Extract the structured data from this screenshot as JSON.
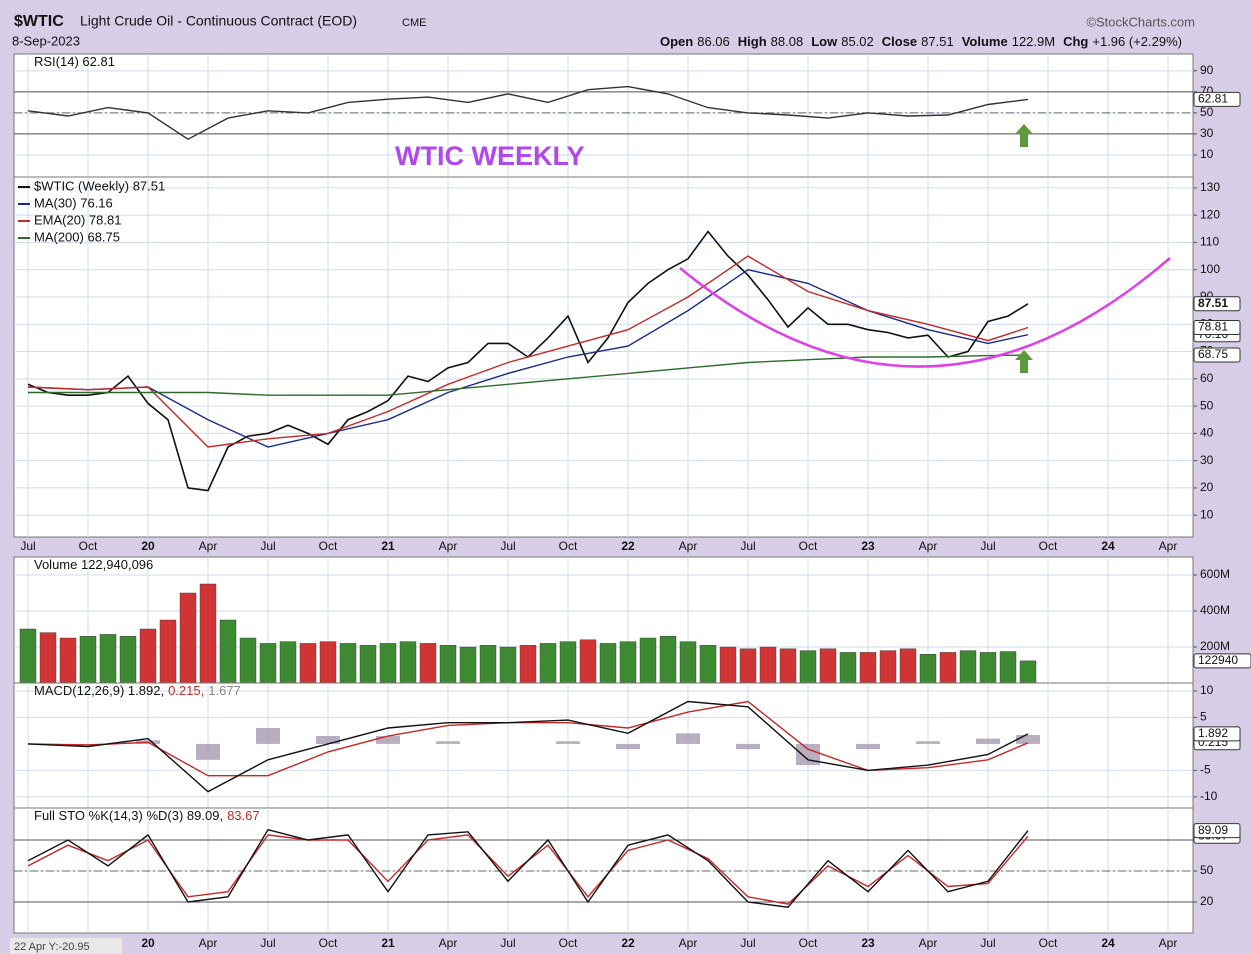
{
  "header": {
    "symbol": "$WTIC",
    "name": "Light Crude Oil - Continuous Contract (EOD)",
    "exchange": "CME",
    "date": "8-Sep-2023",
    "credit": "©StockCharts.com",
    "quote": [
      {
        "label": "Open",
        "value": "86.06"
      },
      {
        "label": "High",
        "value": "88.08"
      },
      {
        "label": "Low",
        "value": "85.02"
      },
      {
        "label": "Close",
        "value": "87.51"
      },
      {
        "label": "Volume",
        "value": "122.9M"
      },
      {
        "label": "Chg",
        "value": "+1.96 (+2.29%)"
      }
    ],
    "annotation": "WTIC WEEKLY",
    "cursor": "22 Apr Y:-20.95"
  },
  "time_axis": {
    "xlim": [
      -0.7,
      58.25
    ],
    "xticks": [
      {
        "value": 0,
        "label": "Jul"
      },
      {
        "value": 3,
        "label": "Oct"
      },
      {
        "value": 6,
        "label": "20"
      },
      {
        "value": 9,
        "label": "Apr"
      },
      {
        "value": 12,
        "label": "Jul"
      },
      {
        "value": 15,
        "label": "Oct"
      },
      {
        "value": 18,
        "label": "21"
      },
      {
        "value": 21,
        "label": "Apr"
      },
      {
        "value": 24,
        "label": "Jul"
      },
      {
        "value": 27,
        "label": "Oct"
      },
      {
        "value": 30,
        "label": "22"
      },
      {
        "value": 33,
        "label": "Apr"
      },
      {
        "value": 36,
        "label": "Jul"
      },
      {
        "value": 39,
        "label": "Oct"
      },
      {
        "value": 42,
        "label": "23"
      },
      {
        "value": 45,
        "label": "Apr"
      },
      {
        "value": 48,
        "label": "Jul"
      },
      {
        "value": 51,
        "label": "Oct"
      },
      {
        "value": 54,
        "label": "24"
      },
      {
        "value": 57,
        "label": "Apr"
      }
    ]
  },
  "chart_data": [
    {
      "type": "line",
      "title_parts": [
        "RSI(14) 62.81"
      ],
      "title_colors": [
        "#111"
      ],
      "ylim": [
        -11,
        106
      ],
      "yticks": [
        10,
        30,
        50,
        70,
        90
      ],
      "ref_lines": [
        30,
        70
      ],
      "mid_line": 50,
      "series": [
        {
          "name": "RSI(14)",
          "color": "#333",
          "tag": true,
          "x": [
            0,
            2,
            4,
            6,
            8,
            10,
            12,
            14,
            16,
            18,
            20,
            22,
            24,
            26,
            28,
            30,
            32,
            34,
            36,
            38,
            40,
            42,
            44,
            46,
            48,
            50
          ],
          "values": [
            52,
            47,
            55,
            50,
            25,
            45,
            52,
            50,
            60,
            63,
            65,
            60,
            68,
            60,
            72,
            75,
            68,
            55,
            50,
            48,
            45,
            50,
            47,
            48,
            58,
            62.81
          ]
        }
      ]
    },
    {
      "type": "line",
      "legend": true,
      "ylim": [
        2,
        134
      ],
      "yticks": [
        10,
        20,
        30,
        40,
        50,
        60,
        70,
        80,
        90,
        100,
        110,
        120,
        130
      ],
      "series": [
        {
          "name": "$WTIC (Weekly) 87.51",
          "color": "#111",
          "tag": true,
          "x": [
            0,
            1,
            2,
            3,
            4,
            5,
            6,
            7,
            8,
            9,
            10,
            11,
            12,
            13,
            14,
            15,
            16,
            17,
            18,
            19,
            20,
            21,
            22,
            23,
            24,
            25,
            26,
            27,
            28,
            29,
            30,
            31,
            32,
            33,
            34,
            35,
            36,
            37,
            38,
            39,
            40,
            41,
            42,
            43,
            44,
            45,
            46,
            47,
            48,
            49,
            50
          ],
          "values": [
            58,
            55,
            54,
            54,
            55,
            61,
            51,
            45,
            20,
            19,
            35,
            39,
            40,
            43,
            40,
            36,
            45,
            48,
            52,
            61,
            59,
            64,
            66,
            73,
            73,
            68,
            75,
            83,
            66,
            75,
            88,
            95,
            100,
            104,
            114,
            105,
            98,
            89,
            79,
            86,
            80,
            80,
            78,
            77,
            75,
            76,
            68,
            70,
            81,
            83,
            87.51
          ]
        },
        {
          "name": "MA(30) 76.16",
          "color": "#1a2a8c",
          "tag": true,
          "x": [
            0,
            3,
            6,
            9,
            12,
            15,
            18,
            21,
            24,
            27,
            30,
            33,
            36,
            39,
            42,
            45,
            48,
            50
          ],
          "values": [
            57,
            56,
            57,
            45,
            35,
            40,
            45,
            55,
            62,
            68,
            72,
            85,
            100,
            95,
            85,
            78,
            73,
            76.16
          ]
        },
        {
          "name": "EMA(20) 78.81",
          "color": "#c62828",
          "tag": true,
          "x": [
            0,
            3,
            6,
            9,
            12,
            15,
            18,
            21,
            24,
            27,
            30,
            33,
            36,
            39,
            42,
            45,
            48,
            50
          ],
          "values": [
            57,
            56,
            57,
            35,
            38,
            40,
            48,
            58,
            66,
            72,
            78,
            90,
            105,
            92,
            85,
            80,
            74,
            78.81
          ]
        },
        {
          "name": "MA(200) 68.75",
          "color": "#2e6b2a",
          "tag": true,
          "x": [
            0,
            3,
            6,
            9,
            12,
            15,
            18,
            21,
            24,
            27,
            30,
            33,
            36,
            39,
            42,
            45,
            48,
            50
          ],
          "values": [
            55,
            55,
            55,
            55,
            54,
            54,
            54,
            56,
            58,
            60,
            62,
            64,
            66,
            67,
            68,
            68,
            68.5,
            68.75
          ]
        }
      ]
    },
    {
      "type": "bar",
      "title_parts": [
        "Volume 122,940,096"
      ],
      "title_colors": [
        "#111"
      ],
      "last_label": "122940",
      "up_color": "#3d8a32",
      "down_color": "#d03434",
      "ylim": [
        0,
        700
      ],
      "yticks": [
        {
          "value": 200,
          "label": "200M"
        },
        {
          "value": 400,
          "label": "400M"
        },
        {
          "value": 600,
          "label": "600M"
        }
      ],
      "series": [
        {
          "name": "Volume",
          "x": [
            0,
            1,
            2,
            3,
            4,
            5,
            6,
            7,
            8,
            9,
            10,
            11,
            12,
            13,
            14,
            15,
            16,
            17,
            18,
            19,
            20,
            21,
            22,
            23,
            24,
            25,
            26,
            27,
            28,
            29,
            30,
            31,
            32,
            33,
            34,
            35,
            36,
            37,
            38,
            39,
            40,
            41,
            42,
            43,
            44,
            45,
            46,
            47,
            48,
            49,
            50
          ],
          "values": [
            300,
            280,
            250,
            260,
            270,
            260,
            300,
            350,
            500,
            550,
            350,
            250,
            220,
            230,
            220,
            230,
            220,
            210,
            220,
            230,
            220,
            210,
            200,
            210,
            200,
            210,
            220,
            230,
            240,
            220,
            230,
            250,
            260,
            230,
            210,
            200,
            190,
            200,
            190,
            180,
            190,
            170,
            170,
            180,
            190,
            160,
            170,
            180,
            170,
            175,
            122.94
          ]
        }
      ]
    },
    {
      "type": "line",
      "title_parts": [
        "MACD(12,26,9) 1.892,",
        "0.215,",
        "1.677"
      ],
      "title_colors": [
        "#111",
        "#c62828",
        "#888"
      ],
      "ylim": [
        -12.1,
        11.5
      ],
      "yticks": [
        -10,
        -5,
        5,
        10
      ],
      "series": [
        {
          "name": "Histogram",
          "color": "#a898b0",
          "style": "bar",
          "x": [
            0,
            3,
            6,
            9,
            12,
            15,
            18,
            21,
            24,
            27,
            30,
            33,
            36,
            39,
            42,
            45,
            48,
            50
          ],
          "values": [
            0,
            -0.3,
            0.7,
            -3,
            3,
            1.5,
            1.5,
            0.5,
            0,
            0.5,
            -1,
            2,
            -1,
            -4,
            -1,
            0.5,
            1,
            1.677
          ]
        },
        {
          "name": "Signal",
          "color": "#c62828",
          "tag": true,
          "x": [
            0,
            3,
            6,
            9,
            12,
            15,
            18,
            21,
            24,
            27,
            30,
            33,
            36,
            39,
            42,
            45,
            48,
            50
          ],
          "values": [
            0,
            -0.2,
            0.3,
            -6,
            -6,
            -1.5,
            1.5,
            3.5,
            4,
            4,
            3,
            6,
            8,
            -1,
            -5,
            -4.5,
            -3,
            0.215
          ]
        },
        {
          "name": "MACD",
          "color": "#111",
          "tag": true,
          "x": [
            0,
            3,
            6,
            9,
            12,
            15,
            18,
            21,
            24,
            27,
            30,
            33,
            36,
            39,
            42,
            45,
            48,
            50
          ],
          "values": [
            0,
            -0.5,
            1,
            -9,
            -3,
            0,
            3,
            4,
            4,
            4.5,
            2,
            8,
            7,
            -3,
            -5,
            -4,
            -2,
            1.892
          ]
        }
      ]
    },
    {
      "type": "line",
      "title_parts": [
        "Full STO %K(14,3) %D(3) 89.09,",
        "83.67"
      ],
      "title_colors": [
        "#111",
        "#c62828"
      ],
      "ylim": [
        -10,
        111
      ],
      "yticks": [
        20,
        50,
        80
      ],
      "ref_lines": [
        20,
        80
      ],
      "mid_line": 50,
      "series": [
        {
          "name": "%D(3)",
          "color": "#c62828",
          "tag": true,
          "x": [
            0,
            2,
            4,
            6,
            8,
            10,
            12,
            14,
            16,
            18,
            20,
            22,
            24,
            26,
            28,
            30,
            32,
            34,
            36,
            38,
            40,
            42,
            44,
            46,
            48,
            50
          ],
          "values": [
            55,
            75,
            60,
            80,
            25,
            30,
            85,
            80,
            80,
            40,
            80,
            85,
            45,
            75,
            25,
            70,
            80,
            62,
            25,
            18,
            55,
            35,
            65,
            35,
            38,
            83.67
          ]
        },
        {
          "name": "%K(14,3)",
          "color": "#111",
          "tag": true,
          "x": [
            0,
            2,
            4,
            6,
            8,
            10,
            12,
            14,
            16,
            18,
            20,
            22,
            24,
            26,
            28,
            30,
            32,
            34,
            36,
            38,
            40,
            42,
            44,
            46,
            48,
            50
          ],
          "values": [
            60,
            80,
            55,
            85,
            20,
            25,
            90,
            80,
            85,
            30,
            85,
            88,
            40,
            80,
            20,
            75,
            85,
            60,
            20,
            15,
            60,
            30,
            70,
            30,
            40,
            89.09
          ]
        }
      ]
    }
  ]
}
